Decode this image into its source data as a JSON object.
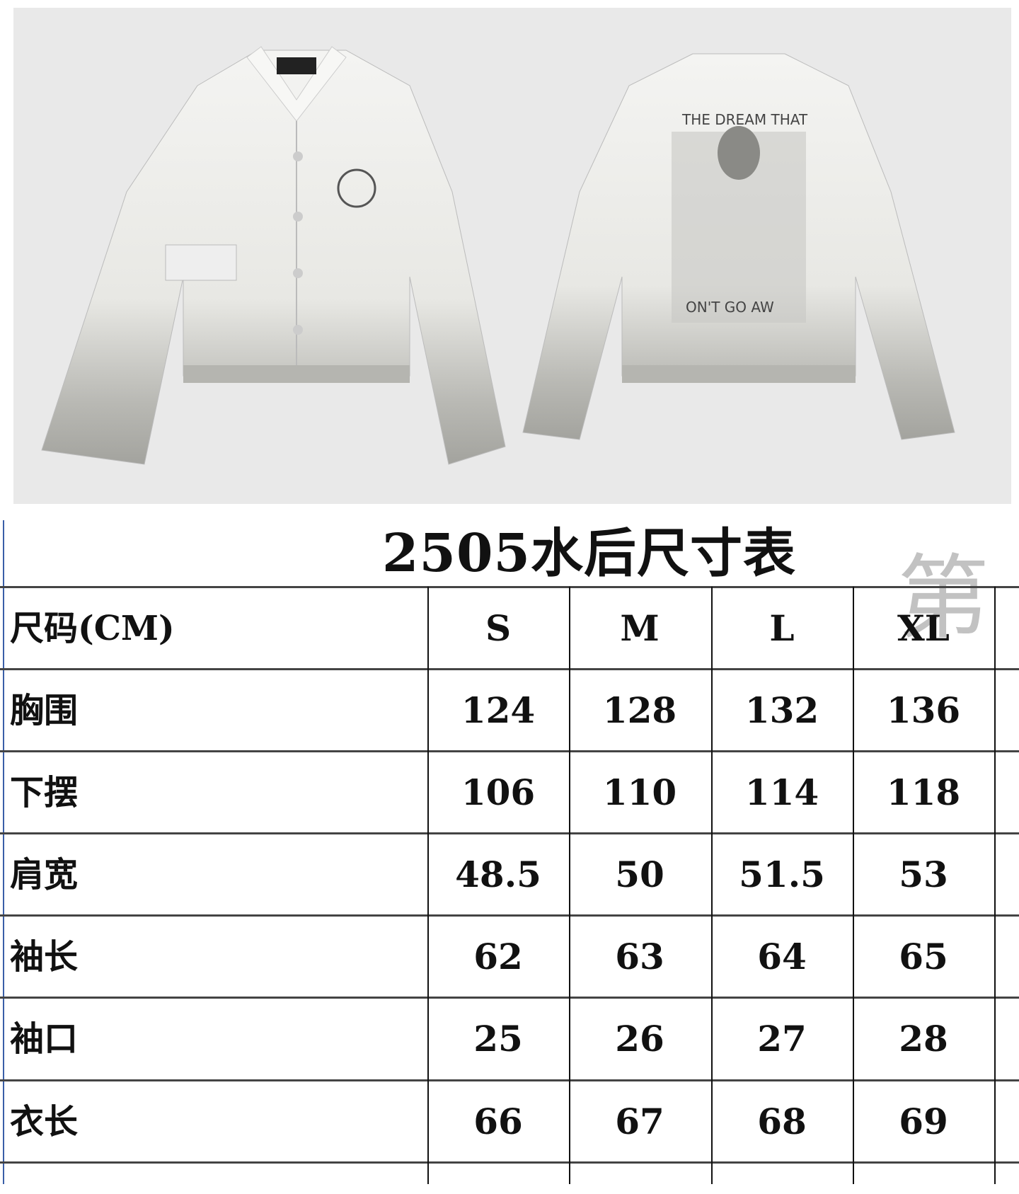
{
  "photo": {
    "front_jacket": "white denim trucker jacket, front view",
    "back_jacket_print_top": "THE DREAM THAT",
    "back_jacket_print_bottom": "ON'T GO AW"
  },
  "table": {
    "title": "2505水后尺寸表",
    "watermark": "第",
    "header": {
      "label": "尺码(CM)",
      "sizes": [
        "S",
        "M",
        "L",
        "XL"
      ]
    },
    "rows": [
      {
        "label": "胸围",
        "values": [
          "124",
          "128",
          "132",
          "136"
        ]
      },
      {
        "label": "下摆",
        "values": [
          "106",
          "110",
          "114",
          "118"
        ]
      },
      {
        "label": "肩宽",
        "values": [
          "48.5",
          "50",
          "51.5",
          "53"
        ]
      },
      {
        "label": "袖长",
        "values": [
          "62",
          "63",
          "64",
          "65"
        ]
      },
      {
        "label": "袖口",
        "values": [
          "25",
          "26",
          "27",
          "28"
        ]
      },
      {
        "label": "衣长",
        "values": [
          "66",
          "67",
          "68",
          "69"
        ]
      }
    ]
  },
  "colors": {
    "photo_bg": "#e9e9e9",
    "edge": "#3a5fa8"
  }
}
